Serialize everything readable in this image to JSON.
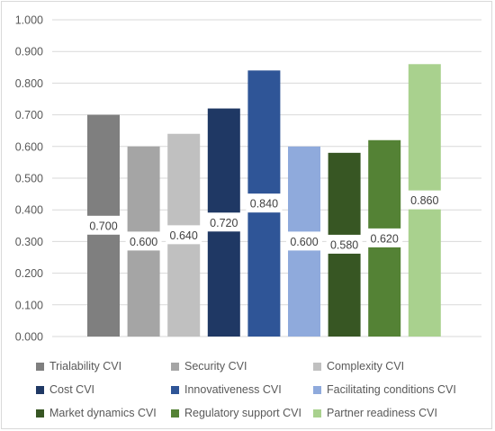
{
  "chart_data": {
    "type": "bar",
    "title": "",
    "xlabel": "",
    "ylabel": "",
    "ylim": [
      0,
      1.0
    ],
    "yticks": [
      "0.000",
      "0.100",
      "0.200",
      "0.300",
      "0.400",
      "0.500",
      "0.600",
      "0.700",
      "0.800",
      "0.900",
      "1.000"
    ],
    "grid": true,
    "legend_position": "bottom",
    "series": [
      {
        "name": "Trialability CVI",
        "value": 0.7,
        "label": "0.700",
        "color": "#7f7f7f"
      },
      {
        "name": "Security CVI",
        "value": 0.6,
        "label": "0.600",
        "color": "#a5a5a5"
      },
      {
        "name": "Complexity CVI",
        "value": 0.64,
        "label": "0.640",
        "color": "#c0c0c0"
      },
      {
        "name": "Cost CVI",
        "value": 0.72,
        "label": "0.720",
        "color": "#1f3864"
      },
      {
        "name": "Innovativeness CVI",
        "value": 0.84,
        "label": "0.840",
        "color": "#2f5597"
      },
      {
        "name": "Facilitating conditions CVI",
        "value": 0.6,
        "label": "0.600",
        "color": "#8faadc"
      },
      {
        "name": "Market dynamics CVI",
        "value": 0.58,
        "label": "0.580",
        "color": "#375623"
      },
      {
        "name": "Regulatory support CVI",
        "value": 0.62,
        "label": "0.620",
        "color": "#548235"
      },
      {
        "name": "Partner readiness CVI",
        "value": 0.86,
        "label": "0.860",
        "color": "#a9d18e"
      }
    ]
  }
}
